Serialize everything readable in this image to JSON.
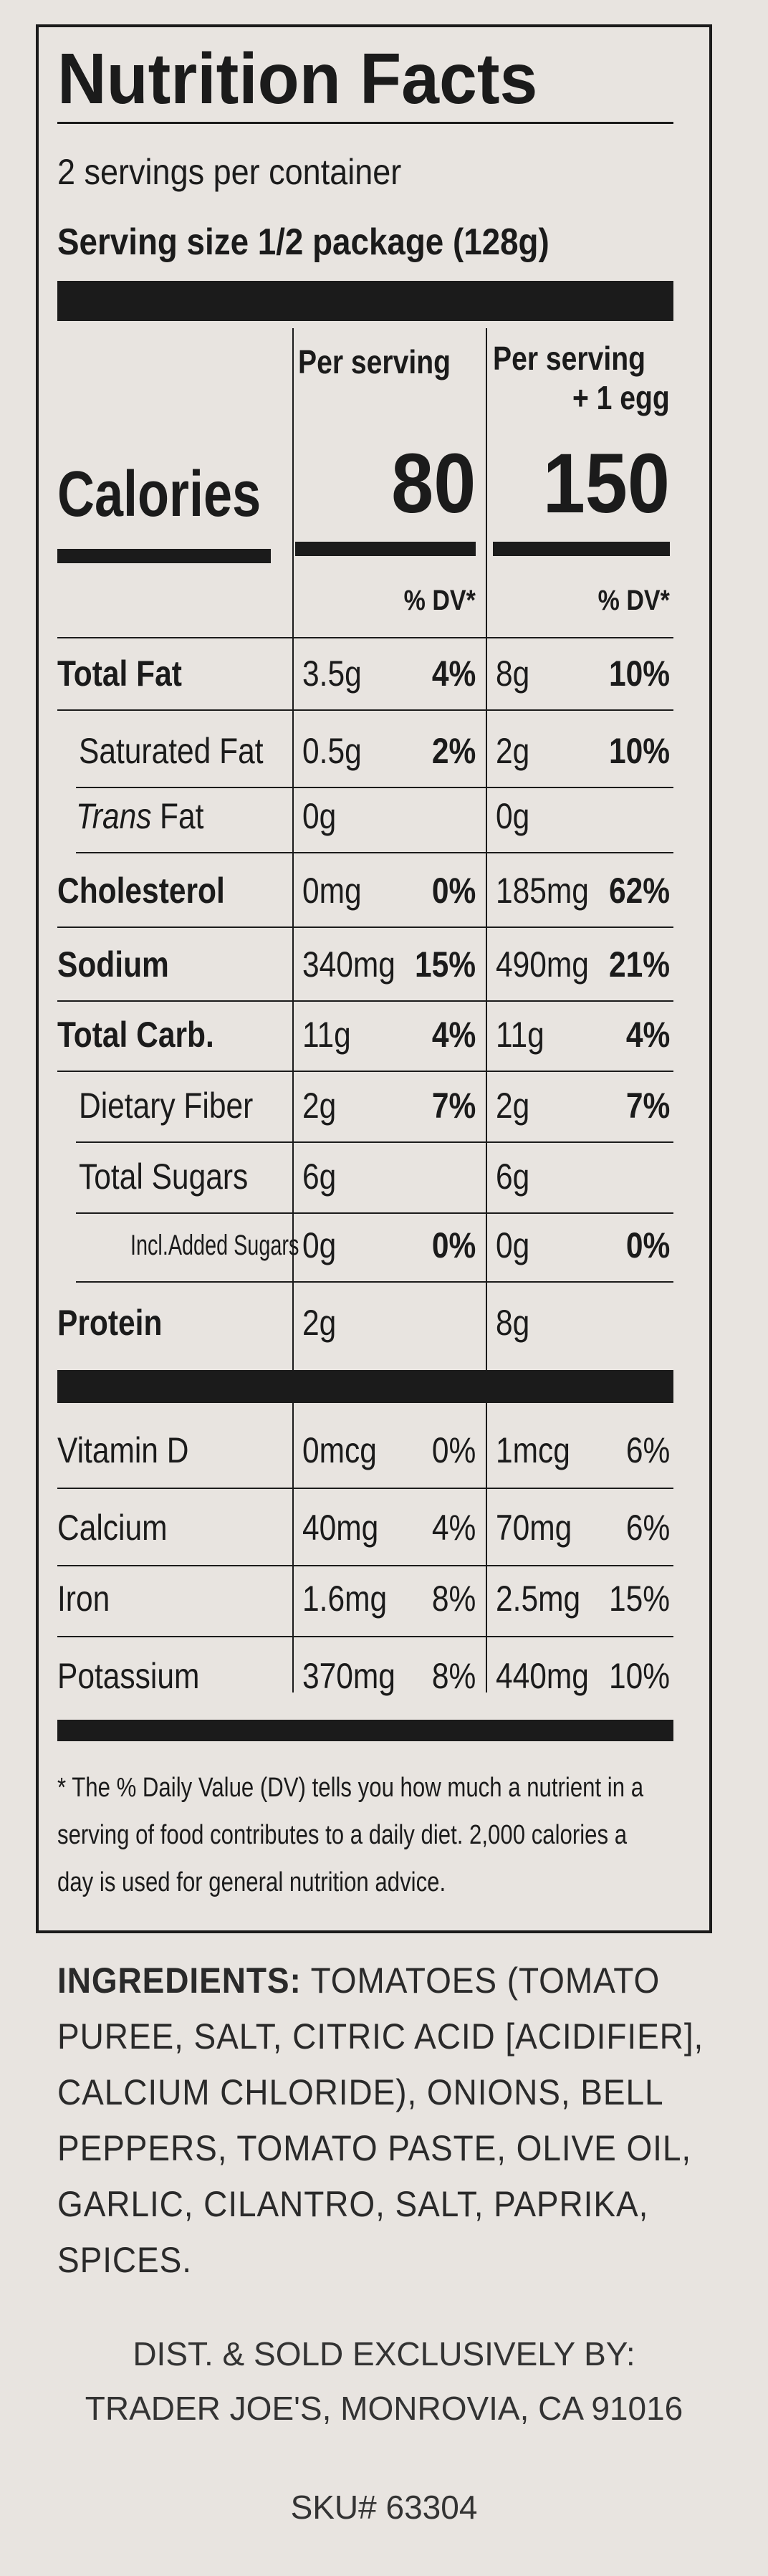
{
  "title": "Nutrition Facts",
  "servings": "2 servings per container",
  "serving_size": "Serving size 1/2 package (128g)",
  "columns": [
    {
      "header": [
        "Per serving"
      ],
      "calories": 80,
      "dv_header": "% DV*"
    },
    {
      "header": [
        "Per serving",
        "+ 1 egg"
      ],
      "calories": 150,
      "dv_header": "% DV*"
    }
  ],
  "calories_label": "Calories",
  "nutrients": [
    {
      "label": "Total Fat",
      "bold": true,
      "indent": 0,
      "amounts": [
        "3.5g",
        "8g"
      ],
      "dv": [
        "4%",
        "10%"
      ]
    },
    {
      "label": "Saturated Fat",
      "bold": false,
      "indent": 1,
      "amounts": [
        "0.5g",
        "2g"
      ],
      "dv": [
        "2%",
        "10%"
      ]
    },
    {
      "label_parts": [
        {
          "text": "Trans",
          "italic": true
        },
        {
          "text": "Fat",
          "italic": false
        }
      ],
      "bold": false,
      "indent": 1,
      "amounts": [
        "0g",
        "0g"
      ],
      "dv": [
        null,
        null
      ]
    },
    {
      "label": "Cholesterol",
      "bold": true,
      "indent": 0,
      "amounts": [
        "0mg",
        "185mg"
      ],
      "dv": [
        "0%",
        "62%"
      ]
    },
    {
      "label": "Sodium",
      "bold": true,
      "indent": 0,
      "amounts": [
        "340mg",
        "490mg"
      ],
      "dv": [
        "15%",
        "21%"
      ]
    },
    {
      "label": "Total Carb.",
      "bold": true,
      "indent": 0,
      "amounts": [
        "11g",
        "11g"
      ],
      "dv": [
        "4%",
        "4%"
      ]
    },
    {
      "label": "Dietary Fiber",
      "bold": false,
      "indent": 1,
      "amounts": [
        "2g",
        "2g"
      ],
      "dv": [
        "7%",
        "7%"
      ]
    },
    {
      "label": "Total Sugars",
      "bold": false,
      "indent": 1,
      "amounts": [
        "6g",
        "6g"
      ],
      "dv": [
        null,
        null
      ]
    },
    {
      "label": "Incl.Added Sugars",
      "bold": false,
      "indent": 2,
      "amounts": [
        "0g",
        "0g"
      ],
      "dv": [
        "0%",
        "0%"
      ]
    },
    {
      "label": "Protein",
      "bold": true,
      "indent": 0,
      "amounts": [
        "2g",
        "8g"
      ],
      "dv": [
        null,
        null
      ]
    }
  ],
  "vitamins": [
    {
      "label": "Vitamin D",
      "amounts": [
        "0mcg",
        "1mcg"
      ],
      "dv": [
        "0%",
        "6%"
      ]
    },
    {
      "label": "Calcium",
      "amounts": [
        "40mg",
        "70mg"
      ],
      "dv": [
        "4%",
        "6%"
      ]
    },
    {
      "label": "Iron",
      "amounts": [
        "1.6mg",
        "2.5mg"
      ],
      "dv": [
        "8%",
        "15%"
      ]
    },
    {
      "label": "Potassium",
      "amounts": [
        "370mg",
        "440mg"
      ],
      "dv": [
        "8%",
        "10%"
      ]
    }
  ],
  "footnote": "* The % Daily Value (DV) tells you how much a nutrient in a serving of food contributes to a daily diet. 2,000 calories a day is used for general nutrition advice.",
  "ingredients": {
    "label": "INGREDIENTS:",
    "text": "TOMATOES (TOMATO PUREE, SALT, CITRIC ACID [ACIDIFIER], CALCIUM CHLORIDE), ONIONS, BELL PEPPERS, TOMATO PASTE, OLIVE OIL, GARLIC, CILANTRO, SALT, PAPRIKA, SPICES."
  },
  "distributor": [
    "DIST. & SOLD EXCLUSIVELY BY:",
    "TRADER JOE'S, MONROVIA, CA 91016"
  ],
  "sku": "SKU# 63304"
}
